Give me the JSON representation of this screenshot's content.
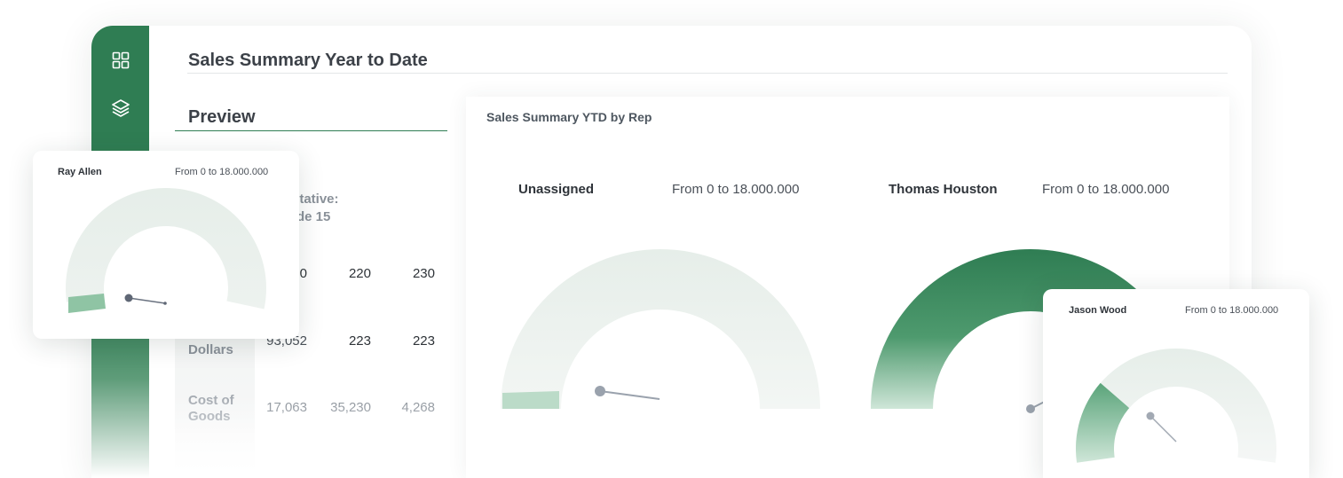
{
  "header": {
    "title": "Sales Summary Year to Date"
  },
  "sidebar": {
    "icons": [
      "grid-icon",
      "layers-icon"
    ]
  },
  "preview": {
    "title": "Preview",
    "rep_header_line1": "srntative:",
    "rep_header_line2": "Code 15",
    "rows": [
      {
        "label": "",
        "values": [
          "0",
          "220",
          "230"
        ]
      },
      {
        "label": "Dollars",
        "values": [
          "93,052",
          "223",
          "223"
        ]
      },
      {
        "label": "Cost of Goods",
        "label_line1": "Cost of",
        "label_line2": "Goods",
        "values": [
          "17,063",
          "35,230",
          "4,268"
        ]
      }
    ]
  },
  "chart": {
    "title": "Sales Summary YTD by Rep",
    "gauges": [
      {
        "name": "Unassigned",
        "range": "From 0 to 18.000.000"
      },
      {
        "name": "Thomas Houston",
        "range": "From 0 to 18.000.000"
      }
    ]
  },
  "chart_data": {
    "type": "gauge",
    "title": "Sales Summary YTD by Rep",
    "range": [
      0,
      18000000
    ],
    "series": [
      {
        "name": "Unassigned",
        "value_fraction": 0.03
      },
      {
        "name": "Thomas Houston",
        "value_fraction": 0.85
      },
      {
        "name": "Ray Allen",
        "value_fraction": 0.03
      },
      {
        "name": "Jason Wood",
        "value_fraction": 0.25
      }
    ]
  },
  "cards": {
    "ray": {
      "name": "Ray Allen",
      "range": "From 0 to 18.000.000"
    },
    "jason": {
      "name": "Jason Wood",
      "range": "From 0 to 18.000.000"
    }
  },
  "colors": {
    "accent": "#2f7d53",
    "gauge_track": "#e8efec",
    "gauge_fill_light": "#a8d2b9",
    "needle": "#9aa2ad"
  }
}
